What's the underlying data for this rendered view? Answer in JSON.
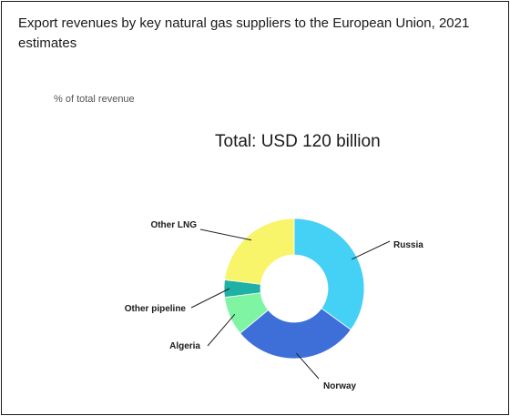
{
  "chart_data": {
    "type": "pie",
    "title": "Export revenues by key natural gas suppliers to the European Union, 2021 estimates",
    "ylabel": "% of total revenue",
    "annotation": "Total: USD 120 billion",
    "categories": [
      "Russia",
      "Norway",
      "Algeria",
      "Other pipeline",
      "Other LNG"
    ],
    "values": [
      35,
      29,
      9,
      4,
      23
    ],
    "colors": [
      "#45d0f5",
      "#3e6fd8",
      "#7ff5a3",
      "#1fb0a6",
      "#f8f56a"
    ]
  }
}
